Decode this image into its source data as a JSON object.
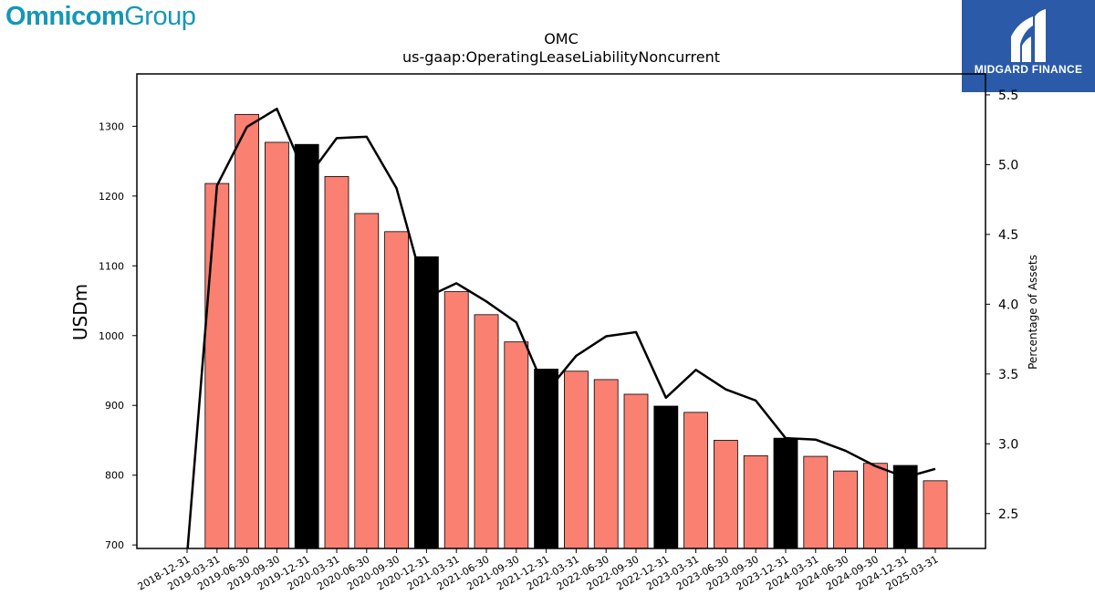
{
  "logos": {
    "omnicom": {
      "bold": "Omnicom",
      "light": "Group"
    },
    "midgard": {
      "name": "MIDGARD FINANCE"
    }
  },
  "colors": {
    "bar": "#fa8072",
    "bar_year_end": "#000000",
    "line": "#000000",
    "omnicom": "#1597b8",
    "midgard_bg": "#2a5aa8"
  },
  "chart_data": {
    "type": "bar",
    "title": "OMC",
    "subtitle": "us-gaap:OperatingLeaseLiabilityNoncurrent",
    "ylabel": "USDm",
    "y2label": "Percentage of Assets",
    "ylim": [
      695,
      1375
    ],
    "y2lim": [
      2.25,
      5.65
    ],
    "yticks": [
      700,
      800,
      900,
      1000,
      1100,
      1200,
      1300
    ],
    "y2ticks": [
      2.5,
      3.0,
      3.5,
      4.0,
      4.5,
      5.0,
      5.5
    ],
    "categories": [
      "2018-12-31",
      "2019-03-31",
      "2019-06-30",
      "2019-09-30",
      "2019-12-31",
      "2020-03-31",
      "2020-06-30",
      "2020-09-30",
      "2020-12-31",
      "2021-03-31",
      "2021-06-30",
      "2021-09-30",
      "2021-12-31",
      "2022-03-31",
      "2022-06-30",
      "2022-09-30",
      "2022-12-31",
      "2023-03-31",
      "2023-06-30",
      "2023-09-30",
      "2023-12-31",
      "2024-03-31",
      "2024-06-30",
      "2024-09-30",
      "2024-12-31",
      "2025-03-31"
    ],
    "series": [
      {
        "type": "bar",
        "values": [
          null,
          1218,
          1317,
          1277,
          1274,
          1228,
          1175,
          1149,
          1113,
          1063,
          1030,
          991,
          952,
          949,
          937,
          916,
          899,
          890,
          850,
          828,
          853,
          827,
          806,
          817,
          814,
          792
        ],
        "year_end": [
          false,
          false,
          false,
          false,
          true,
          false,
          false,
          false,
          true,
          false,
          false,
          false,
          true,
          false,
          false,
          false,
          true,
          false,
          false,
          false,
          true,
          false,
          false,
          false,
          true,
          false
        ]
      },
      {
        "type": "line",
        "axis": "right",
        "values": [
          2.2,
          4.85,
          5.27,
          5.4,
          4.9,
          5.19,
          5.2,
          4.83,
          4.05,
          4.15,
          4.02,
          3.87,
          3.37,
          3.63,
          3.77,
          3.8,
          3.33,
          3.53,
          3.39,
          3.31,
          3.04,
          3.03,
          2.95,
          2.84,
          2.76,
          2.82
        ]
      }
    ],
    "grid": false,
    "legend": "none"
  }
}
